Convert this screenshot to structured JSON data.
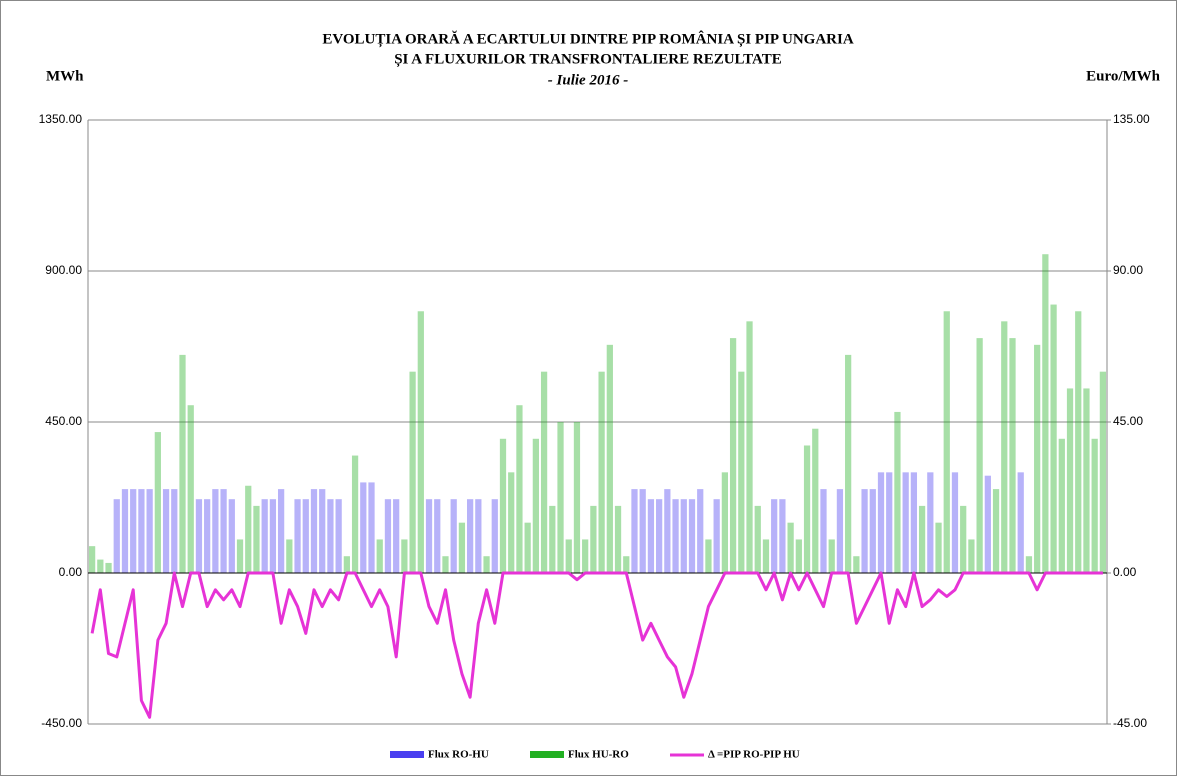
{
  "chart_data": {
    "type": "bar-line",
    "title": "EVOLUȚIA ORARĂ A ECARTULUI DINTRE PIP ROMÂNIA ȘI PIP UNGARIA",
    "title_line2": "ȘI A FLUXURILOR TRANSFRONTALIERE REZULTATE",
    "subtitle": "- Iulie 2016 -",
    "y_label": "MWh",
    "y2_label": "Euro/MWh",
    "ylim": [
      -450,
      1350
    ],
    "yticks": [
      {
        "value": -450,
        "label": "-450.00"
      },
      {
        "value": 0,
        "label": "0.00"
      },
      {
        "value": 450,
        "label": "450.00"
      },
      {
        "value": 900,
        "label": "900.00"
      },
      {
        "value": 1350,
        "label": "1350.00"
      }
    ],
    "y2lim": [
      -45,
      135
    ],
    "y2ticks": [
      {
        "value": -45,
        "label": "-45.00"
      },
      {
        "value": 0,
        "label": "0.00"
      },
      {
        "value": 45,
        "label": "45.00"
      },
      {
        "value": 90,
        "label": "90.00"
      },
      {
        "value": 135,
        "label": "135.00"
      }
    ],
    "grid": true,
    "series": [
      {
        "name": "Flux RO-HU",
        "type": "bar",
        "color": "#4a3ff0",
        "values": [
          null,
          null,
          null,
          220,
          250,
          250,
          250,
          250,
          null,
          250,
          250,
          null,
          null,
          220,
          220,
          250,
          250,
          220,
          null,
          null,
          null,
          220,
          220,
          250,
          null,
          220,
          220,
          250,
          250,
          220,
          220,
          null,
          null,
          270,
          270,
          null,
          220,
          220,
          null,
          null,
          null,
          220,
          220,
          null,
          220,
          null,
          220,
          220,
          null,
          220,
          null,
          null,
          null,
          null,
          null,
          null,
          null,
          null,
          null,
          null,
          null,
          null,
          null,
          null,
          null,
          null,
          250,
          250,
          220,
          220,
          250,
          220,
          220,
          220,
          250,
          null,
          220,
          null,
          null,
          null,
          null,
          null,
          null,
          220,
          220,
          null,
          null,
          null,
          null,
          250,
          null,
          250,
          null,
          null,
          250,
          250,
          300,
          300,
          null,
          300,
          300,
          null,
          300,
          null,
          null,
          300,
          null,
          null,
          null,
          290,
          null,
          null,
          null,
          300,
          null,
          null,
          null,
          null,
          null,
          null,
          null,
          null,
          null,
          null
        ]
      },
      {
        "name": "Flux HU-RO",
        "type": "bar",
        "color": "#22b022",
        "values": [
          80,
          40,
          30,
          null,
          null,
          null,
          null,
          null,
          420,
          null,
          null,
          650,
          500,
          null,
          null,
          null,
          null,
          null,
          100,
          260,
          200,
          null,
          null,
          null,
          100,
          null,
          null,
          null,
          null,
          null,
          null,
          50,
          350,
          null,
          null,
          100,
          null,
          null,
          100,
          600,
          780,
          null,
          null,
          50,
          null,
          150,
          null,
          null,
          50,
          null,
          400,
          300,
          500,
          150,
          400,
          600,
          200,
          450,
          100,
          450,
          100,
          200,
          600,
          680,
          200,
          50,
          null,
          null,
          null,
          null,
          null,
          null,
          null,
          null,
          null,
          100,
          null,
          300,
          700,
          600,
          750,
          200,
          100,
          null,
          null,
          150,
          100,
          380,
          430,
          null,
          100,
          null,
          650,
          50,
          null,
          null,
          null,
          null,
          480,
          null,
          null,
          200,
          null,
          150,
          780,
          null,
          200,
          100,
          700,
          null,
          250,
          750,
          700,
          null,
          50,
          680,
          950,
          800,
          400,
          550,
          780,
          550,
          400,
          600
        ]
      },
      {
        "name": "Δ =PIP RO-PIP HU",
        "type": "line",
        "axis": "y2",
        "color": "#e633d6",
        "values": [
          -18,
          -5,
          -24,
          -25,
          -15,
          -5,
          -38,
          -43,
          -20,
          -15,
          0,
          -10,
          0,
          0,
          -10,
          -5,
          -8,
          -5,
          -10,
          0,
          0,
          0,
          0,
          -15,
          -5,
          -10,
          -18,
          -5,
          -10,
          -5,
          -8,
          0,
          0,
          -5,
          -10,
          -5,
          -10,
          -25,
          0,
          0,
          0,
          -10,
          -15,
          -5,
          -20,
          -30,
          -37,
          -15,
          -5,
          -15,
          0,
          0,
          0,
          0,
          0,
          0,
          0,
          0,
          0,
          -2,
          0,
          0,
          0,
          0,
          0,
          0,
          -10,
          -20,
          -15,
          -20,
          -25,
          -28,
          -37,
          -30,
          -20,
          -10,
          -5,
          0,
          0,
          0,
          0,
          0,
          -5,
          0,
          -8,
          0,
          -5,
          0,
          -5,
          -10,
          0,
          0,
          0,
          -15,
          -10,
          -5,
          0,
          -15,
          -5,
          -10,
          0,
          -10,
          -8,
          -5,
          -7,
          -5,
          0,
          0,
          0,
          0,
          0,
          0,
          0,
          0,
          0,
          -5,
          0,
          0,
          0,
          0,
          0,
          0,
          0,
          0
        ]
      }
    ]
  }
}
